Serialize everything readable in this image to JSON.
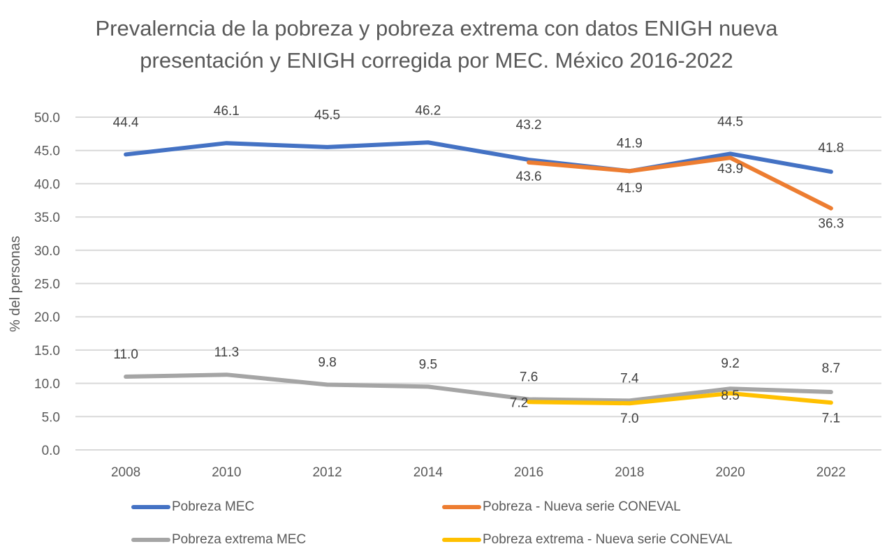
{
  "chart_data": {
    "type": "line",
    "title": "Prevalerncia de la pobreza y pobreza extrema con datos ENIGH nueva presentación y ENIGH corregida por MEC. México 2016-2022",
    "title_lines": [
      "Prevalerncia de la pobreza y pobreza extrema con datos ENIGH nueva",
      "presentación y ENIGH corregida por MEC. México 2016-2022"
    ],
    "xlabel": "",
    "ylabel": "% del personas",
    "categories": [
      "2008",
      "2010",
      "2012",
      "2014",
      "2016",
      "2018",
      "2020",
      "2022"
    ],
    "ylim": [
      0,
      50
    ],
    "yticks": [
      "0.0",
      "5.0",
      "10.0",
      "15.0",
      "20.0",
      "25.0",
      "30.0",
      "35.0",
      "40.0",
      "45.0",
      "50.0"
    ],
    "grid": true,
    "legend_position": "bottom",
    "series": [
      {
        "name": "Pobreza MEC",
        "color": "#4472C4",
        "values": [
          44.4,
          46.1,
          45.5,
          46.2,
          43.6,
          41.9,
          44.5,
          41.8
        ],
        "labels": [
          "44.4",
          "46.1",
          "45.5",
          "46.2",
          "43.6",
          "41.9",
          "44.5",
          "41.8"
        ]
      },
      {
        "name": "Pobreza - Nueva serie CONEVAL",
        "color": "#ED7D31",
        "values": [
          null,
          null,
          null,
          null,
          43.2,
          41.9,
          43.9,
          36.3
        ],
        "labels": [
          null,
          null,
          null,
          null,
          "43.2",
          "41.9",
          "43.9",
          "36.3"
        ]
      },
      {
        "name": "Pobreza extrema MEC",
        "color": "#A5A5A5",
        "values": [
          11.0,
          11.3,
          9.8,
          9.5,
          7.6,
          7.4,
          9.2,
          8.7
        ],
        "labels": [
          "11.0",
          "11.3",
          "9.8",
          "9.5",
          "7.6",
          "7.4",
          "9.2",
          "8.7"
        ]
      },
      {
        "name": "Pobreza extrema - Nueva serie CONEVAL",
        "color": "#FFC000",
        "values": [
          null,
          null,
          null,
          null,
          7.2,
          7.0,
          8.5,
          7.1
        ],
        "labels": [
          null,
          null,
          null,
          null,
          "7.2",
          "7.0",
          "8.5",
          "7.1"
        ]
      }
    ]
  }
}
